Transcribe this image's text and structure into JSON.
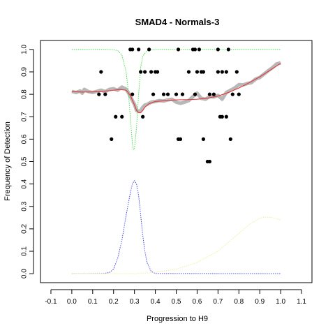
{
  "chart_data": {
    "type": "scatter",
    "title": "SMAD4 - Normals-3",
    "xlabel": "Progression to H9",
    "ylabel": "Frequency of Detection",
    "xlim": [
      -0.15,
      1.15
    ],
    "ylim": [
      -0.04,
      1.04
    ],
    "x_ticks": [
      -0.1,
      0.0,
      0.1,
      0.2,
      0.3,
      0.4,
      0.5,
      0.6,
      0.7,
      0.8,
      0.9,
      1.0,
      1.1
    ],
    "y_ticks": [
      0.0,
      0.1,
      0.2,
      0.3,
      0.4,
      0.5,
      0.6,
      0.7,
      0.8,
      0.9,
      1.0
    ],
    "grid": false,
    "legend": "none",
    "series": [
      {
        "style": "points",
        "color": "#000000",
        "points": [
          [
            0.14,
            0.9
          ],
          [
            0.13,
            0.8
          ],
          [
            0.16,
            0.8
          ],
          [
            0.19,
            0.6
          ],
          [
            0.21,
            0.7
          ],
          [
            0.24,
            0.7
          ],
          [
            0.28,
            1.0
          ],
          [
            0.29,
            1.0
          ],
          [
            0.29,
            0.8
          ],
          [
            0.32,
            1.0
          ],
          [
            0.33,
            0.9
          ],
          [
            0.34,
            0.7
          ],
          [
            0.35,
            0.9
          ],
          [
            0.37,
            1.0
          ],
          [
            0.38,
            0.9
          ],
          [
            0.39,
            0.8
          ],
          [
            0.4,
            0.9
          ],
          [
            0.41,
            0.9
          ],
          [
            0.44,
            0.8
          ],
          [
            0.46,
            0.8
          ],
          [
            0.5,
            0.8
          ],
          [
            0.51,
            1.0
          ],
          [
            0.51,
            0.6
          ],
          [
            0.52,
            0.6
          ],
          [
            0.53,
            0.8
          ],
          [
            0.56,
            0.9
          ],
          [
            0.58,
            1.0
          ],
          [
            0.59,
            1.0
          ],
          [
            0.59,
            0.8
          ],
          [
            0.6,
            0.9
          ],
          [
            0.61,
            1.0
          ],
          [
            0.62,
            0.9
          ],
          [
            0.63,
            0.9
          ],
          [
            0.63,
            0.6
          ],
          [
            0.65,
            0.5
          ],
          [
            0.66,
            0.5
          ],
          [
            0.66,
            0.8
          ],
          [
            0.68,
            0.8
          ],
          [
            0.7,
            1.0
          ],
          [
            0.7,
            0.9
          ],
          [
            0.71,
            0.7
          ],
          [
            0.72,
            0.7
          ],
          [
            0.72,
            0.9
          ],
          [
            0.74,
            0.7
          ],
          [
            0.74,
            0.9
          ],
          [
            0.75,
            1.0
          ],
          [
            0.76,
            0.6
          ],
          [
            0.77,
            0.8
          ],
          [
            0.79,
            0.9
          ],
          [
            0.8,
            0.8
          ]
        ]
      },
      {
        "style": "thick-line",
        "color": "#b8b8b8",
        "points": [
          [
            0.0,
            0.813
          ],
          [
            0.02,
            0.808
          ],
          [
            0.04,
            0.815
          ],
          [
            0.05,
            0.805
          ],
          [
            0.06,
            0.822
          ],
          [
            0.08,
            0.812
          ],
          [
            0.1,
            0.808
          ],
          [
            0.12,
            0.813
          ],
          [
            0.14,
            0.818
          ],
          [
            0.16,
            0.812
          ],
          [
            0.18,
            0.822
          ],
          [
            0.2,
            0.825
          ],
          [
            0.22,
            0.818
          ],
          [
            0.24,
            0.832
          ],
          [
            0.26,
            0.823
          ],
          [
            0.27,
            0.808
          ],
          [
            0.28,
            0.792
          ],
          [
            0.29,
            0.772
          ],
          [
            0.3,
            0.755
          ],
          [
            0.31,
            0.728
          ],
          [
            0.32,
            0.725
          ],
          [
            0.33,
            0.728
          ],
          [
            0.34,
            0.742
          ],
          [
            0.35,
            0.752
          ],
          [
            0.36,
            0.755
          ],
          [
            0.38,
            0.765
          ],
          [
            0.4,
            0.768
          ],
          [
            0.42,
            0.772
          ],
          [
            0.44,
            0.77
          ],
          [
            0.46,
            0.775
          ],
          [
            0.48,
            0.778
          ],
          [
            0.5,
            0.765
          ],
          [
            0.52,
            0.76
          ],
          [
            0.54,
            0.765
          ],
          [
            0.56,
            0.772
          ],
          [
            0.58,
            0.79
          ],
          [
            0.6,
            0.805
          ],
          [
            0.62,
            0.782
          ],
          [
            0.64,
            0.778
          ],
          [
            0.66,
            0.79
          ],
          [
            0.68,
            0.788
          ],
          [
            0.7,
            0.795
          ],
          [
            0.72,
            0.778
          ],
          [
            0.74,
            0.808
          ],
          [
            0.76,
            0.818
          ],
          [
            0.78,
            0.828
          ],
          [
            0.8,
            0.843
          ],
          [
            0.82,
            0.842
          ],
          [
            0.84,
            0.848
          ],
          [
            0.86,
            0.852
          ],
          [
            0.88,
            0.868
          ],
          [
            0.9,
            0.875
          ],
          [
            0.92,
            0.89
          ],
          [
            0.94,
            0.905
          ],
          [
            0.96,
            0.918
          ],
          [
            0.98,
            0.935
          ],
          [
            1.0,
            0.94
          ]
        ]
      },
      {
        "style": "line",
        "color": "#e04040",
        "points": [
          [
            0.0,
            0.812
          ],
          [
            0.05,
            0.81
          ],
          [
            0.1,
            0.811
          ],
          [
            0.15,
            0.813
          ],
          [
            0.2,
            0.818
          ],
          [
            0.23,
            0.822
          ],
          [
            0.26,
            0.818
          ],
          [
            0.28,
            0.795
          ],
          [
            0.3,
            0.752
          ],
          [
            0.31,
            0.728
          ],
          [
            0.32,
            0.718
          ],
          [
            0.33,
            0.718
          ],
          [
            0.34,
            0.728
          ],
          [
            0.35,
            0.742
          ],
          [
            0.37,
            0.758
          ],
          [
            0.4,
            0.768
          ],
          [
            0.45,
            0.772
          ],
          [
            0.5,
            0.775
          ],
          [
            0.55,
            0.776
          ],
          [
            0.6,
            0.778
          ],
          [
            0.65,
            0.783
          ],
          [
            0.7,
            0.792
          ],
          [
            0.75,
            0.808
          ],
          [
            0.8,
            0.828
          ],
          [
            0.85,
            0.852
          ],
          [
            0.9,
            0.878
          ],
          [
            0.95,
            0.908
          ],
          [
            1.0,
            0.938
          ]
        ]
      },
      {
        "style": "dotted",
        "color": "#44dd44",
        "points": [
          [
            0.0,
            1.0
          ],
          [
            0.15,
            1.0
          ],
          [
            0.2,
            0.999
          ],
          [
            0.22,
            0.995
          ],
          [
            0.24,
            0.975
          ],
          [
            0.26,
            0.9
          ],
          [
            0.27,
            0.82
          ],
          [
            0.28,
            0.7
          ],
          [
            0.29,
            0.58
          ],
          [
            0.295,
            0.553
          ],
          [
            0.3,
            0.56
          ],
          [
            0.31,
            0.65
          ],
          [
            0.32,
            0.8
          ],
          [
            0.33,
            0.92
          ],
          [
            0.34,
            0.97
          ],
          [
            0.36,
            0.995
          ],
          [
            0.4,
            1.0
          ],
          [
            1.0,
            1.0
          ]
        ]
      },
      {
        "style": "dotted",
        "color": "#4444ee",
        "points": [
          [
            0.0,
            0.0
          ],
          [
            0.15,
            0.001
          ],
          [
            0.18,
            0.005
          ],
          [
            0.2,
            0.02
          ],
          [
            0.22,
            0.07
          ],
          [
            0.24,
            0.15
          ],
          [
            0.26,
            0.26
          ],
          [
            0.28,
            0.36
          ],
          [
            0.29,
            0.4
          ],
          [
            0.3,
            0.415
          ],
          [
            0.31,
            0.4
          ],
          [
            0.32,
            0.35
          ],
          [
            0.33,
            0.26
          ],
          [
            0.34,
            0.17
          ],
          [
            0.35,
            0.1
          ],
          [
            0.36,
            0.05
          ],
          [
            0.38,
            0.01
          ],
          [
            0.4,
            0.001
          ],
          [
            1.0,
            0.0
          ]
        ]
      },
      {
        "style": "dotted",
        "color": "#f0f090",
        "points": [
          [
            0.0,
            0.0
          ],
          [
            0.3,
            0.0
          ],
          [
            0.4,
            0.006
          ],
          [
            0.5,
            0.02
          ],
          [
            0.6,
            0.05
          ],
          [
            0.7,
            0.1
          ],
          [
            0.8,
            0.18
          ],
          [
            0.85,
            0.22
          ],
          [
            0.9,
            0.248
          ],
          [
            0.93,
            0.253
          ],
          [
            0.96,
            0.25
          ],
          [
            1.0,
            0.24
          ]
        ]
      }
    ]
  }
}
